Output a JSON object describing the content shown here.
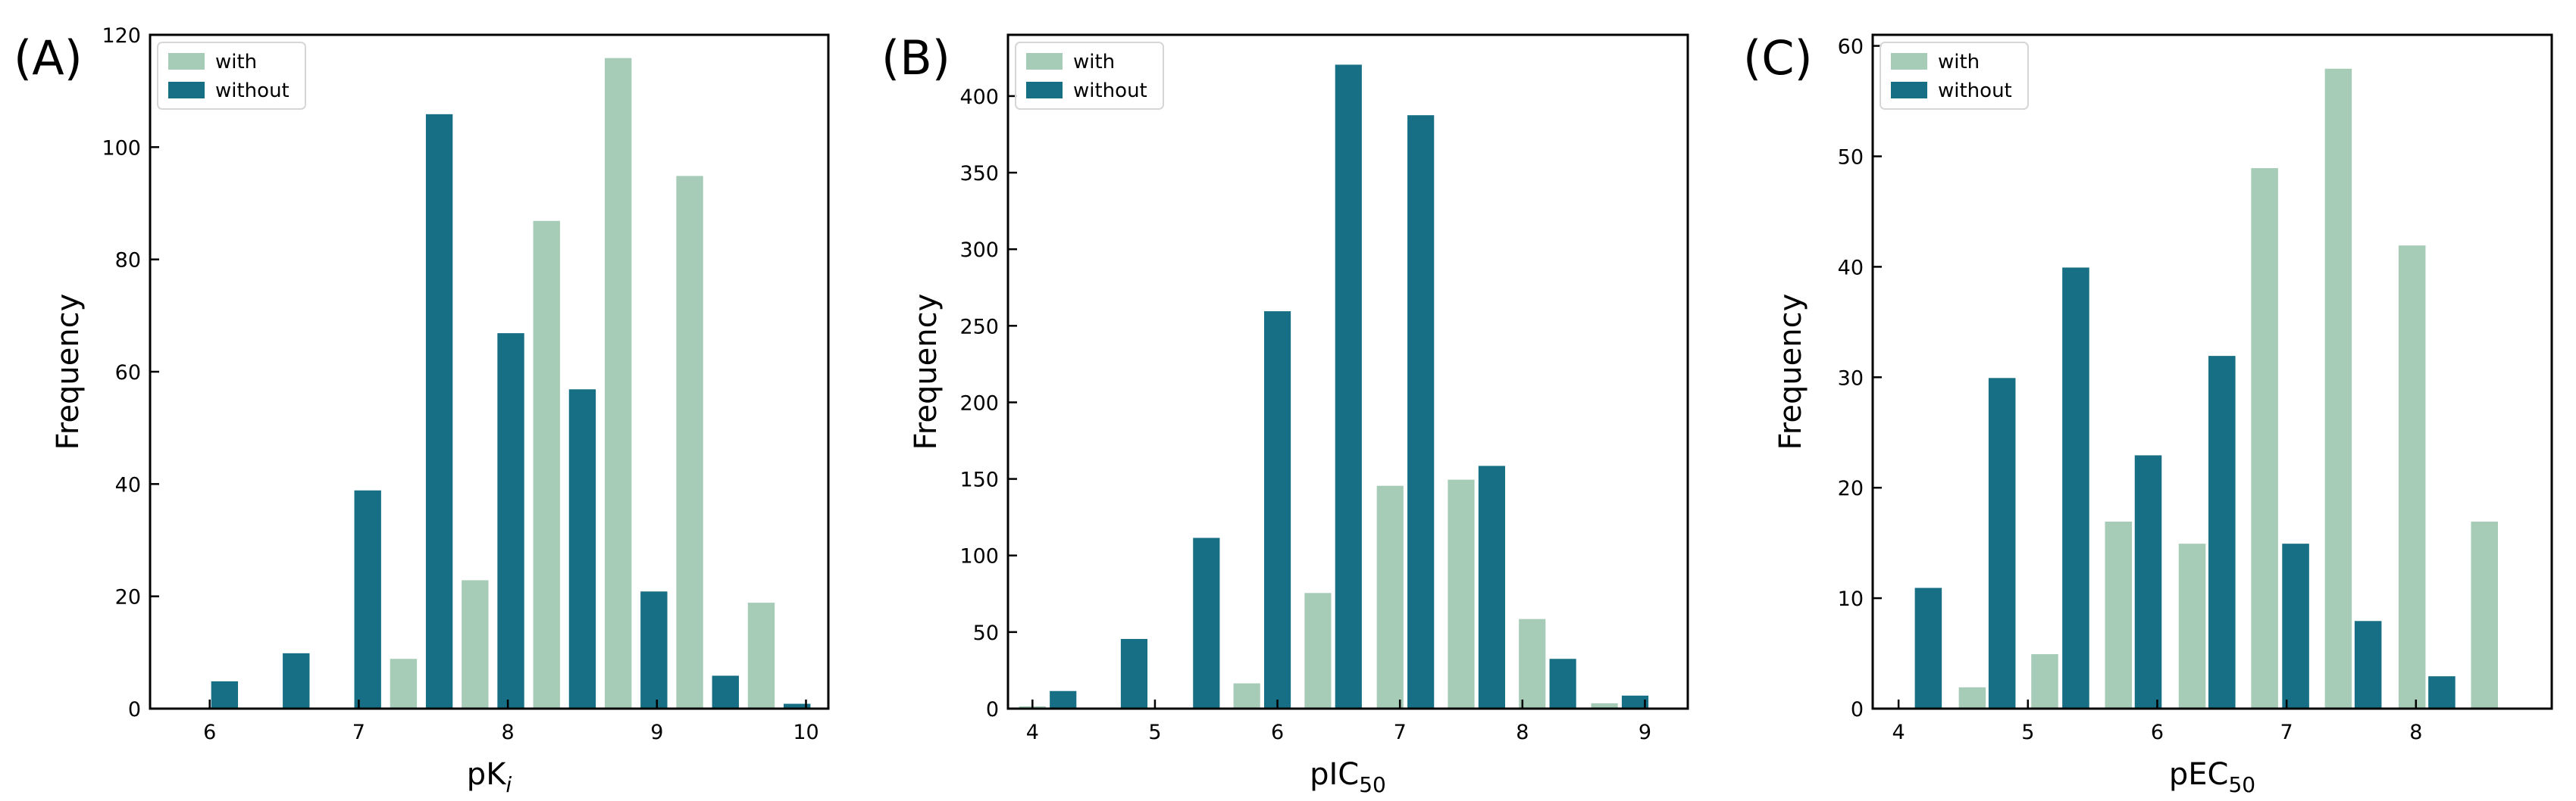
{
  "colors": {
    "with": "#a6cbb7",
    "without": "#166f84"
  },
  "chart_data": [
    {
      "type": "bar",
      "panel": "(A)",
      "xlabel": "pK",
      "xlabel_sub": "i",
      "xlabel_sub_style": "italic",
      "ylabel": "Frequency",
      "xlim": [
        5.6,
        10.15
      ],
      "ylim": [
        0,
        120
      ],
      "xticks": [
        "6",
        "7",
        "8",
        "9",
        "10"
      ],
      "xtick_values": [
        6,
        7,
        8,
        9,
        10
      ],
      "yticks": [
        "0",
        "20",
        "40",
        "60",
        "80",
        "100",
        "120"
      ],
      "ytick_values": [
        0,
        20,
        40,
        60,
        80,
        100,
        120
      ],
      "bar_width": 0.19,
      "legend": {
        "position": "top-left",
        "entries": [
          "with",
          "without"
        ]
      },
      "series": [
        {
          "name": "with",
          "x": [
            7.3,
            7.78,
            8.26,
            8.74,
            9.22,
            9.7
          ],
          "values": [
            9,
            23,
            87,
            116,
            95,
            19
          ]
        },
        {
          "name": "without",
          "x": [
            6.1,
            6.58,
            7.06,
            7.54,
            8.02,
            8.5,
            8.98,
            9.46,
            9.94
          ],
          "values": [
            5,
            10,
            39,
            106,
            67,
            57,
            21,
            6,
            1
          ]
        }
      ]
    },
    {
      "type": "bar",
      "panel": "(B)",
      "xlabel": "pIC",
      "xlabel_sub": "50",
      "xlabel_sub_style": "normal",
      "ylabel": "Frequency",
      "xlim": [
        3.8,
        9.35
      ],
      "ylim": [
        0,
        440
      ],
      "xticks": [
        "4",
        "5",
        "6",
        "7",
        "8",
        "9"
      ],
      "xtick_values": [
        4,
        5,
        6,
        7,
        8,
        9
      ],
      "yticks": [
        "0",
        "50",
        "100",
        "150",
        "200",
        "250",
        "300",
        "350",
        "400"
      ],
      "ytick_values": [
        0,
        50,
        100,
        150,
        200,
        250,
        300,
        350,
        400
      ],
      "bar_width": 0.23,
      "legend": {
        "position": "top-left",
        "entries": [
          "with",
          "without"
        ]
      },
      "series": [
        {
          "name": "with",
          "x": [
            4.0,
            5.17,
            5.75,
            6.33,
            6.92,
            7.5,
            8.08,
            8.67
          ],
          "values": [
            2,
            1,
            17,
            76,
            146,
            150,
            59,
            4
          ]
        },
        {
          "name": "without",
          "x": [
            4.25,
            4.83,
            5.42,
            6.0,
            6.58,
            7.17,
            7.75,
            8.33,
            8.92
          ],
          "values": [
            12,
            46,
            112,
            260,
            421,
            388,
            159,
            33,
            9
          ]
        }
      ]
    },
    {
      "type": "bar",
      "panel": "(C)",
      "xlabel": "pEC",
      "xlabel_sub": "50",
      "xlabel_sub_style": "normal",
      "ylabel": "Frequency",
      "xlim": [
        3.8,
        9.05
      ],
      "ylim": [
        0,
        61
      ],
      "xticks": [
        "4",
        "5",
        "6",
        "7",
        "8"
      ],
      "xtick_values": [
        4,
        5,
        6,
        7,
        8
      ],
      "yticks": [
        "0",
        "10",
        "20",
        "30",
        "40",
        "50",
        "60"
      ],
      "ytick_values": [
        0,
        10,
        20,
        30,
        40,
        50,
        60
      ],
      "bar_width": 0.22,
      "legend": {
        "position": "top-left",
        "entries": [
          "with",
          "without"
        ]
      },
      "series": [
        {
          "name": "with",
          "x": [
            4.0,
            4.57,
            5.13,
            5.7,
            6.27,
            6.83,
            7.4,
            7.97,
            8.53
          ],
          "values": [
            0,
            2,
            5,
            17,
            15,
            49,
            58,
            42,
            17
          ]
        },
        {
          "name": "without",
          "x": [
            4.23,
            4.8,
            5.37,
            5.93,
            6.5,
            7.07,
            7.63,
            8.2
          ],
          "values": [
            11,
            30,
            40,
            23,
            32,
            15,
            8,
            3
          ]
        }
      ]
    }
  ]
}
